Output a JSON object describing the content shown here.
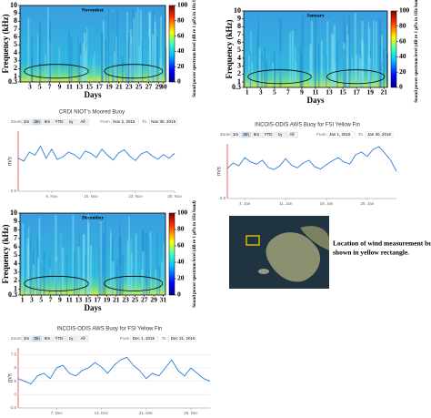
{
  "chart_data": [
    {
      "type": "spectrogram",
      "title": "November",
      "xlabel": "Days",
      "ylabel": "Frequency (kHz)",
      "xlim": [
        1,
        30.4
      ],
      "xticks": [
        3,
        5,
        7,
        9,
        11,
        13,
        15,
        17,
        19,
        21,
        23,
        25,
        27,
        29,
        30
      ],
      "ylim": [
        0.3,
        10
      ],
      "yticks": [
        0.3,
        1,
        2,
        3,
        4,
        5,
        6,
        7,
        8,
        9,
        10
      ],
      "colorbar": {
        "label": "Sound power spectrum level (dB re 1 µPa in 1Hz band)",
        "lim": [
          0,
          100
        ],
        "ticks": [
          0,
          20,
          40,
          60,
          80,
          100
        ]
      }
    },
    {
      "type": "spectrogram",
      "title": "January",
      "xlabel": "Days",
      "ylabel": "Frequency (kHz)",
      "xlim": [
        0.5,
        21.5
      ],
      "xticks": [
        1,
        3,
        5,
        7,
        9,
        11,
        13,
        15,
        17,
        19,
        21
      ],
      "ylim": [
        0.3,
        10
      ],
      "yticks": [
        0.3,
        1,
        2,
        3,
        4,
        5,
        6,
        7,
        8,
        9,
        10
      ],
      "colorbar": {
        "label": "Sound power spectrum level (dB re 1 µPa in 1Hz band)",
        "lim": [
          0,
          100
        ],
        "ticks": [
          0,
          20,
          40,
          60,
          80,
          100
        ]
      }
    },
    {
      "type": "line",
      "title": "CRDI NIOT's Moored Buoy",
      "zoom": [
        "Zoom",
        "1m",
        "3m",
        "6m",
        "YTD",
        "1y",
        "All"
      ],
      "from": [
        "From",
        "Nov 2, 2015"
      ],
      "to": [
        "To",
        "Nov 30, 2015"
      ],
      "ylabel": "m/s",
      "color": "#2f7ed8",
      "x": [
        2,
        3,
        4,
        5,
        6,
        7,
        8,
        9,
        10,
        11,
        12,
        13,
        14,
        15,
        16,
        17,
        18,
        19,
        20,
        21,
        22,
        23,
        24,
        25,
        26,
        27,
        28,
        29,
        30
      ],
      "values": [
        3,
        2.5,
        4,
        3.5,
        5,
        3,
        4.5,
        2.8,
        3.2,
        4,
        3.6,
        2.9,
        4.2,
        3.8,
        3.1,
        4.5,
        3.5,
        2.7,
        3.9,
        4.4,
        3.3,
        2.6,
        3.7,
        4.1,
        3.4,
        2.8,
        3.6,
        3.0,
        3.8
      ],
      "xlim": [
        2,
        30
      ],
      "xticks": [
        {
          "value": 8,
          "label": "8. Nov"
        },
        {
          "value": 15,
          "label": "15. Nov"
        },
        {
          "value": 23,
          "label": "23. Nov"
        },
        {
          "value": 30,
          "label": "30. Nov"
        }
      ],
      "ylim": [
        -2.5,
        7.5
      ],
      "yticks": [
        -2.5
      ]
    },
    {
      "type": "line",
      "title": "INCOIS-ODIS AWS Buoy for FSI Yellow Fin",
      "zoom": [
        "Zoom",
        "1m",
        "3m",
        "6m",
        "YTD",
        "1y",
        "All"
      ],
      "from": [
        "From",
        "Jan 1, 2016"
      ],
      "to": [
        "To",
        "Jan 30, 2016"
      ],
      "ylabel": "m/s",
      "color": "#2f7ed8",
      "x": [
        1,
        2,
        3,
        4,
        5,
        6,
        7,
        8,
        9,
        10,
        11,
        12,
        13,
        14,
        15,
        16,
        17,
        18,
        19,
        20,
        21,
        22,
        23,
        24,
        25,
        26,
        27,
        28,
        29,
        30
      ],
      "values": [
        3,
        4,
        3.5,
        5,
        4.2,
        3.8,
        4.5,
        3.2,
        2.8,
        3.5,
        4.8,
        3.6,
        3.1,
        4,
        4.5,
        3.3,
        2.9,
        3.7,
        4.4,
        5,
        4.2,
        3.8,
        5.5,
        6,
        5.2,
        6.5,
        7,
        5.8,
        4.5,
        2.5
      ],
      "xlim": [
        1,
        30
      ],
      "xticks": [
        {
          "value": 4,
          "label": "4. Jan"
        },
        {
          "value": 11,
          "label": "11. Jan"
        },
        {
          "value": 18,
          "label": "18. Jan"
        },
        {
          "value": 25,
          "label": "25. Jan"
        }
      ],
      "ylim": [
        -2.5,
        7.5
      ],
      "yticks": [
        -2.5
      ]
    },
    {
      "type": "spectrogram",
      "title": "December",
      "xlabel": "Days",
      "ylabel": "Frequency (kHz)",
      "xlim": [
        0.5,
        31.5
      ],
      "xticks": [
        1,
        3,
        5,
        7,
        9,
        11,
        13,
        15,
        17,
        19,
        21,
        23,
        25,
        27,
        29,
        31
      ],
      "ylim": [
        0.3,
        10
      ],
      "yticks": [
        0.3,
        1,
        2,
        3,
        4,
        5,
        6,
        7,
        8,
        9,
        10
      ],
      "colorbar": {
        "label": "Sound power spectrum level (dB re 1 µPa in 1Hz band)",
        "lim": [
          0,
          100
        ],
        "ticks": [
          0,
          20,
          40,
          60,
          80,
          100
        ]
      }
    },
    {
      "type": "line",
      "title": "INCOIS-ODIS AWS Buoy for FSI Yellow Fin",
      "zoom": [
        "Zoom",
        "1m",
        "3m",
        "6m",
        "YTD",
        "1y",
        "All"
      ],
      "from": [
        "From",
        "Dec 1, 2015"
      ],
      "to": [
        "To",
        "Dec 31, 2015"
      ],
      "ylabel": "m/s",
      "color": "#2f7ed8",
      "x": [
        1,
        2,
        3,
        4,
        5,
        6,
        7,
        8,
        9,
        10,
        11,
        12,
        13,
        14,
        15,
        16,
        17,
        18,
        19,
        20,
        21,
        22,
        23,
        24,
        25,
        26,
        27,
        28,
        29,
        30,
        31
      ],
      "values": [
        3,
        2.5,
        2,
        3.5,
        4,
        3,
        5,
        5.5,
        4,
        3.5,
        4.5,
        5,
        6,
        5.2,
        4,
        5.5,
        6.5,
        7,
        5.5,
        4.5,
        3,
        4,
        3.5,
        5,
        6.5,
        4.5,
        3.5,
        5,
        4,
        3,
        2.5
      ],
      "xlim": [
        1,
        31
      ],
      "xticks": [
        {
          "value": 7,
          "label": "7. Dec"
        },
        {
          "value": 14,
          "label": "14. Dec"
        },
        {
          "value": 21,
          "label": "21. Dec"
        },
        {
          "value": 28,
          "label": "28. Dec"
        }
      ],
      "ylim": [
        -2.5,
        8.75
      ],
      "yticks": [
        -2.5,
        0,
        2.5,
        5,
        7.5
      ]
    }
  ],
  "figure": {
    "map_caption": [
      "Location of wind measurement buoy",
      "shown in yellow rectangle."
    ]
  }
}
